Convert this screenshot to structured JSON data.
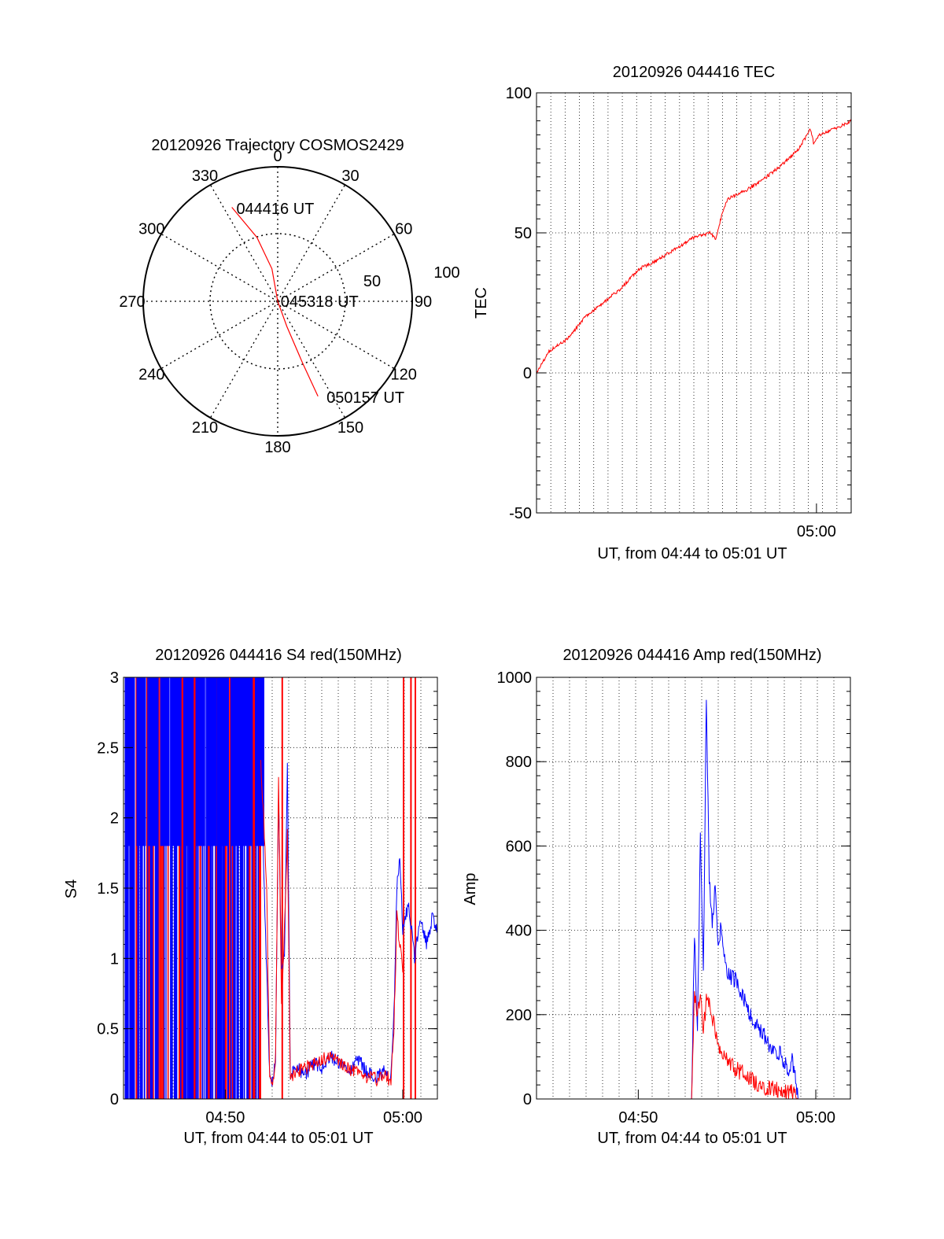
{
  "chart_data": [
    {
      "type": "polar",
      "title": "20120926 Trajectory COSMOS2429",
      "angle_labels": [
        "0",
        "30",
        "60",
        "90",
        "120",
        "150",
        "180",
        "210",
        "240",
        "270",
        "300",
        "330"
      ],
      "radial_labels": [
        "50",
        "100"
      ],
      "trajectory_points": [
        {
          "az": 334,
          "el": 20
        },
        {
          "az": 342,
          "el": 45
        },
        {
          "az": 350,
          "el": 68
        },
        {
          "az": 0,
          "el": 90
        },
        {
          "az": 160,
          "el": 72
        },
        {
          "az": 158,
          "el": 45
        },
        {
          "az": 157,
          "el": 21
        }
      ],
      "annotations": [
        {
          "text": "044416 UT",
          "az": 336,
          "el": 22
        },
        {
          "text": "045318 UT",
          "az": 90,
          "el": 88
        },
        {
          "text": "050157 UT",
          "az": 153,
          "el": 18
        }
      ],
      "colors": {
        "trajectory": "#ff0000"
      }
    },
    {
      "type": "line",
      "title": "20120926 044416 TEC",
      "xlabel": "UT, from 04:44 to 05:01 UT",
      "ylabel": "TEC",
      "ylim": [
        -50,
        100
      ],
      "xlim": [
        "04:44:16",
        "05:01:57"
      ],
      "x_ticks": [
        "05:00"
      ],
      "y_ticks": [
        "100",
        "50",
        "0",
        "-50"
      ],
      "grid": true,
      "series": [
        {
          "color": "#ff0000",
          "x": [
            "04:44:16",
            "04:45:00",
            "04:46:00",
            "04:47:00",
            "04:48:00",
            "04:49:00",
            "04:50:00",
            "04:51:00",
            "04:52:00",
            "04:53:00",
            "04:54:00",
            "04:54:20",
            "04:54:40",
            "04:55:00",
            "04:56:00",
            "04:57:00",
            "04:58:00",
            "04:59:00",
            "04:59:40",
            "04:59:50",
            "05:00:10",
            "05:01:00",
            "05:01:57"
          ],
          "values": [
            0,
            8,
            12,
            20,
            25,
            30,
            37,
            40,
            44,
            48,
            50,
            48,
            56,
            62,
            65,
            69,
            74,
            80,
            87,
            82,
            85,
            87,
            90
          ]
        }
      ]
    },
    {
      "type": "line",
      "title": "20120926 044416 S4 red(150MHz)",
      "xlabel": "UT, from 04:44 to 05:01 UT",
      "ylabel": "S4",
      "ylim": [
        0,
        3
      ],
      "xlim": [
        "04:44:16",
        "05:01:57"
      ],
      "x_ticks": [
        "04:50",
        "05:00"
      ],
      "y_ticks": [
        "3",
        "2.5",
        "2",
        "1.5",
        "1",
        "0.5",
        "0"
      ],
      "grid": true,
      "series": [
        {
          "color": "#0000ff",
          "x": [
            "04:52:00",
            "04:52:10",
            "04:52:20",
            "04:52:30",
            "04:52:40",
            "04:52:50",
            "04:53:00",
            "04:53:10",
            "04:53:20",
            "04:53:30",
            "04:53:40",
            "04:53:50",
            "04:54:00",
            "04:54:30",
            "04:55:00",
            "04:55:30",
            "04:56:00",
            "04:56:30",
            "04:57:00",
            "04:57:30",
            "04:58:00",
            "04:58:30",
            "04:59:00",
            "04:59:20",
            "04:59:30",
            "04:59:40",
            "04:59:50",
            "05:00:00",
            "05:00:20",
            "05:00:40",
            "05:01:00",
            "05:01:20",
            "05:01:40",
            "05:01:57"
          ],
          "values": [
            2.8,
            1.6,
            0.9,
            0.15,
            0.12,
            0.3,
            2.2,
            0.9,
            1.0,
            2.4,
            0.18,
            0.2,
            0.22,
            0.18,
            0.25,
            0.22,
            0.3,
            0.25,
            0.2,
            0.28,
            0.18,
            0.15,
            0.2,
            0.14,
            0.6,
            1.5,
            1.7,
            1.2,
            1.4,
            1.0,
            1.3,
            1.1,
            1.3,
            1.2
          ]
        },
        {
          "color": "#ff0000",
          "x": [
            "04:52:00",
            "04:52:10",
            "04:52:20",
            "04:52:30",
            "04:52:40",
            "04:52:50",
            "04:53:00",
            "04:53:10",
            "04:53:20",
            "04:53:30",
            "04:53:40",
            "04:53:50",
            "04:54:00",
            "04:54:30",
            "04:55:00",
            "04:55:30",
            "04:56:00",
            "04:56:30",
            "04:57:00",
            "04:57:30",
            "04:58:00",
            "04:58:30",
            "04:59:00",
            "04:59:20",
            "04:59:30",
            "04:59:40",
            "04:59:50",
            "05:00:00"
          ],
          "values": [
            2.4,
            2.0,
            1.5,
            0.14,
            0.11,
            0.28,
            2.3,
            0.7,
            1.2,
            1.9,
            0.15,
            0.17,
            0.2,
            0.22,
            0.25,
            0.28,
            0.32,
            0.26,
            0.21,
            0.18,
            0.16,
            0.14,
            0.18,
            0.12,
            0.5,
            1.3,
            1.1,
            0.9
          ]
        }
      ]
    },
    {
      "type": "line",
      "title": "20120926 044416 Amp red(150MHz)",
      "xlabel": "UT, from 04:44 to 05:01 UT",
      "ylabel": "Amp",
      "ylim": [
        0,
        1000
      ],
      "xlim": [
        "04:44:16",
        "05:01:57"
      ],
      "x_ticks": [
        "04:50",
        "05:00"
      ],
      "y_ticks": [
        "1000",
        "800",
        "600",
        "400",
        "200",
        "0"
      ],
      "grid": true,
      "series": [
        {
          "color": "#0000ff",
          "x": [
            "04:44:16",
            "04:52:30",
            "04:53:00",
            "04:53:10",
            "04:53:20",
            "04:53:30",
            "04:53:40",
            "04:53:50",
            "04:54:00",
            "04:54:10",
            "04:54:20",
            "04:54:30",
            "04:54:40",
            "04:54:50",
            "04:55:00",
            "04:55:30",
            "04:56:00",
            "04:56:30",
            "04:57:00",
            "04:57:30",
            "04:58:00",
            "04:58:30",
            "04:58:40",
            "04:59:00",
            "05:01:57"
          ],
          "values": [
            0,
            0,
            0,
            400,
            150,
            630,
            300,
            960,
            520,
            420,
            510,
            360,
            410,
            330,
            300,
            280,
            230,
            180,
            160,
            120,
            110,
            60,
            100,
            0,
            0
          ]
        },
        {
          "color": "#ff0000",
          "x": [
            "04:44:16",
            "04:52:30",
            "04:53:00",
            "04:53:10",
            "04:53:20",
            "04:53:30",
            "04:53:40",
            "04:53:50",
            "04:54:00",
            "04:54:10",
            "04:54:20",
            "04:54:30",
            "04:55:00",
            "04:55:30",
            "04:56:00",
            "04:56:30",
            "04:57:00",
            "04:57:30",
            "04:58:00",
            "04:58:30",
            "04:58:40",
            "04:59:00",
            "05:01:57"
          ],
          "values": [
            0,
            0,
            0,
            250,
            200,
            240,
            160,
            230,
            220,
            200,
            160,
            120,
            90,
            70,
            60,
            40,
            30,
            25,
            20,
            15,
            20,
            0,
            0
          ]
        }
      ]
    }
  ]
}
